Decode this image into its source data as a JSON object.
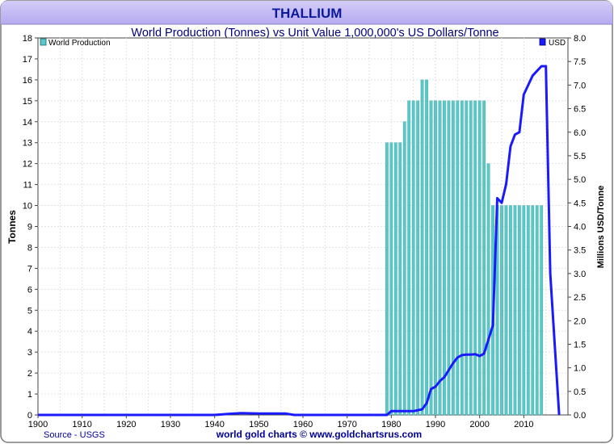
{
  "header": {
    "title": "THALLIUM"
  },
  "footer": {
    "source": "Source - USGS",
    "credit": "world gold charts © www.goldchartsrus.com"
  },
  "chart_data": {
    "type": "bar",
    "title": "World Production (Tonnes) vs Unit Value 1,000,000's US Dollars/Tonne",
    "xlabel": "",
    "ylabel": "Tonnes",
    "y2label": "Millions USD/Tonne",
    "xlim": [
      1900,
      2020
    ],
    "ylim": [
      0,
      18
    ],
    "y2lim": [
      0,
      8
    ],
    "x_ticks": [
      1900,
      1910,
      1920,
      1930,
      1940,
      1950,
      1960,
      1970,
      1980,
      1990,
      2000,
      2010
    ],
    "y_ticks": [
      0,
      1,
      2,
      3,
      4,
      5,
      6,
      7,
      8,
      9,
      10,
      11,
      12,
      13,
      14,
      15,
      16,
      17,
      18
    ],
    "y2_ticks": [
      "0.0",
      "0.5",
      "1.0",
      "1.5",
      "2.0",
      "2.5",
      "3.0",
      "3.5",
      "4.0",
      "4.5",
      "5.0",
      "5.5",
      "6.0",
      "6.5",
      "7.0",
      "7.5",
      "8.0"
    ],
    "legend_left": {
      "label": "World Production",
      "color": "#5bc8c8"
    },
    "legend_right": {
      "label": "USD",
      "color": "#1a1aff"
    },
    "series": [
      {
        "name": "World Production",
        "axis": "left",
        "type": "bar",
        "x": [
          1979,
          1980,
          1981,
          1982,
          1983,
          1984,
          1985,
          1986,
          1987,
          1988,
          1989,
          1990,
          1991,
          1992,
          1993,
          1994,
          1995,
          1996,
          1997,
          1998,
          1999,
          2000,
          2001,
          2002,
          2003,
          2004,
          2005,
          2006,
          2007,
          2008,
          2009,
          2010,
          2011,
          2012,
          2013,
          2014
        ],
        "values": [
          13,
          13,
          13,
          13,
          14,
          15,
          15,
          15,
          16,
          16,
          15,
          15,
          15,
          15,
          15,
          15,
          15,
          15,
          15,
          15,
          15,
          15,
          15,
          12,
          10,
          10,
          10,
          10,
          10,
          10,
          10,
          10,
          10,
          10,
          10,
          10
        ]
      },
      {
        "name": "USD",
        "axis": "right",
        "type": "line",
        "x": [
          1900,
          1940,
          1943,
          1946,
          1950,
          1956,
          1958,
          1979,
          1980,
          1985,
          1987,
          1988,
          1989,
          1990,
          1991,
          1992,
          1993,
          1994,
          1995,
          1996,
          1997,
          1998,
          1999,
          2000,
          2001,
          2002,
          2003,
          2004,
          2005,
          2006,
          2007,
          2008,
          2009,
          2010,
          2011,
          2012,
          2014,
          2015,
          2016,
          2018
        ],
        "values": [
          0,
          0,
          0.02,
          0.04,
          0.03,
          0.03,
          0,
          0,
          0.08,
          0.08,
          0.12,
          0.25,
          0.55,
          0.6,
          0.72,
          0.8,
          0.95,
          1.1,
          1.22,
          1.27,
          1.28,
          1.28,
          1.29,
          1.25,
          1.3,
          1.6,
          1.9,
          4.6,
          4.5,
          4.9,
          5.7,
          5.95,
          6.0,
          6.8,
          7.0,
          7.2,
          7.4,
          7.4,
          3.0,
          0
        ]
      }
    ]
  }
}
